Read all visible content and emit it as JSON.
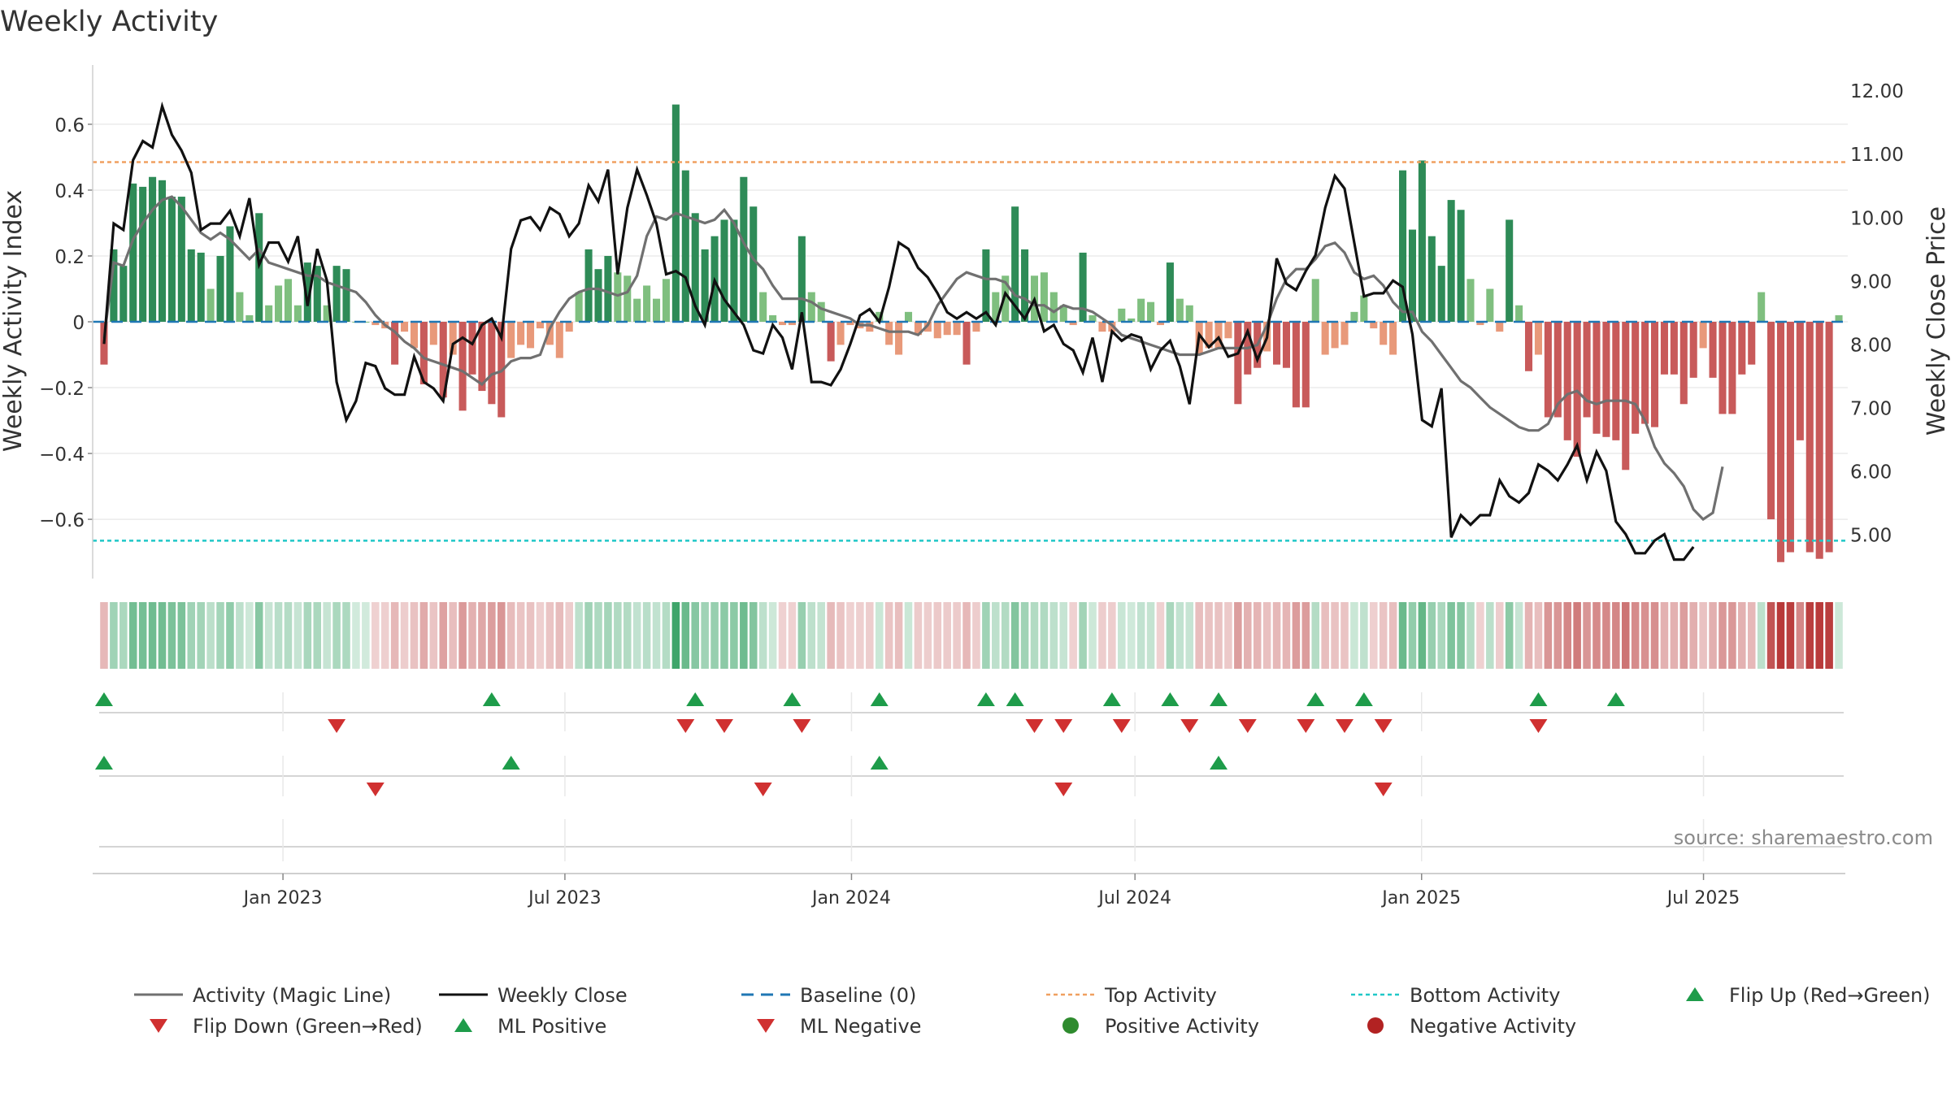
{
  "chart_data": {
    "type": "bar",
    "title": "Weekly Activity",
    "ylabel_left": "Weekly Activity Index",
    "ylabel_right": "Weekly Close Price",
    "ylim_left": [
      -0.78,
      0.78
    ],
    "ylim_right": [
      4.3,
      12.4
    ],
    "yticks_left": [
      0.6,
      0.4,
      0.2,
      0,
      -0.2,
      -0.4,
      -0.6
    ],
    "yticks_left_labels": [
      "0.6",
      "0.4",
      "0.2",
      "0",
      "−0.2",
      "−0.4",
      "−0.6"
    ],
    "yticks_right": [
      12.0,
      11.0,
      10.0,
      9.0,
      8.0,
      7.0,
      6.0,
      5.0
    ],
    "yticks_right_labels": [
      "12.00",
      "11.00",
      "10.00",
      "9.00",
      "8.00",
      "7.00",
      "6.00",
      "5.00"
    ],
    "x_start": "2022-09-05",
    "x_end": "2025-09-29",
    "x_ticks": [
      {
        "date": "2023-01-01",
        "label": "Jan 2023"
      },
      {
        "date": "2023-07-01",
        "label": "Jul 2023"
      },
      {
        "date": "2024-01-01",
        "label": "Jan 2024"
      },
      {
        "date": "2024-07-01",
        "label": "Jul 2024"
      },
      {
        "date": "2025-01-01",
        "label": "Jan 2025"
      },
      {
        "date": "2025-07-01",
        "label": "Jul 2025"
      }
    ],
    "top_activity": 0.485,
    "bottom_activity": -0.665,
    "activity": [
      -0.13,
      0.22,
      0.17,
      0.42,
      0.41,
      0.44,
      0.43,
      0.38,
      0.38,
      0.22,
      0.21,
      0.1,
      0.2,
      0.29,
      0.09,
      0.02,
      0.33,
      0.05,
      0.11,
      0.13,
      0.05,
      0.18,
      0.17,
      0.05,
      0.17,
      0.16,
      0.0,
      0.0,
      -0.01,
      -0.02,
      -0.13,
      -0.03,
      -0.08,
      -0.19,
      -0.07,
      -0.23,
      -0.1,
      -0.27,
      -0.16,
      -0.21,
      -0.25,
      -0.29,
      -0.11,
      -0.07,
      -0.08,
      -0.02,
      -0.07,
      -0.11,
      -0.03,
      0.09,
      0.22,
      0.16,
      0.2,
      0.15,
      0.14,
      0.07,
      0.11,
      0.07,
      0.13,
      0.66,
      0.46,
      0.33,
      0.22,
      0.26,
      0.31,
      0.31,
      0.44,
      0.35,
      0.09,
      0.02,
      -0.01,
      -0.01,
      0.26,
      0.09,
      0.06,
      -0.12,
      -0.07,
      -0.01,
      -0.02,
      -0.03,
      0.03,
      -0.07,
      -0.1,
      0.03,
      -0.04,
      -0.03,
      -0.05,
      -0.04,
      -0.04,
      -0.13,
      -0.03,
      0.22,
      0.09,
      0.14,
      0.35,
      0.22,
      0.14,
      0.15,
      0.09,
      0.05,
      -0.01,
      0.21,
      0.02,
      -0.03,
      -0.03,
      0.04,
      0.01,
      0.07,
      0.06,
      -0.01,
      0.18,
      0.07,
      0.05,
      -0.1,
      -0.08,
      -0.08,
      -0.05,
      -0.25,
      -0.16,
      -0.14,
      -0.09,
      -0.13,
      -0.14,
      -0.26,
      -0.26,
      0.13,
      -0.1,
      -0.08,
      -0.07,
      0.03,
      0.08,
      -0.02,
      -0.07,
      -0.1,
      0.46,
      0.28,
      0.49,
      0.26,
      0.17,
      0.37,
      0.34,
      0.13,
      -0.01,
      0.1,
      -0.03,
      0.31,
      0.05,
      -0.15,
      -0.1,
      -0.29,
      -0.29,
      -0.36,
      -0.41,
      -0.29,
      -0.34,
      -0.35,
      -0.36,
      -0.45,
      -0.34,
      -0.31,
      -0.32,
      -0.16,
      -0.16,
      -0.25,
      -0.17,
      -0.08,
      -0.17,
      -0.28,
      -0.28,
      -0.16,
      -0.13,
      0.09,
      -0.6,
      -0.73,
      -0.7,
      -0.36,
      -0.7,
      -0.72,
      -0.7,
      0.02
    ],
    "series": [
      {
        "name": "Activity (Magic Line)",
        "values": [
          -0.05,
          0.18,
          0.17,
          0.25,
          0.3,
          0.34,
          0.37,
          0.38,
          0.35,
          0.31,
          0.27,
          0.25,
          0.27,
          0.25,
          0.22,
          0.19,
          0.22,
          0.18,
          0.17,
          0.16,
          0.15,
          0.14,
          0.14,
          0.12,
          0.11,
          0.1,
          0.09,
          0.06,
          0.02,
          -0.01,
          -0.03,
          -0.06,
          -0.08,
          -0.11,
          -0.12,
          -0.13,
          -0.14,
          -0.15,
          -0.17,
          -0.19,
          -0.16,
          -0.15,
          -0.12,
          -0.11,
          -0.11,
          -0.1,
          -0.02,
          0.03,
          0.07,
          0.09,
          0.1,
          0.1,
          0.09,
          0.08,
          0.09,
          0.14,
          0.26,
          0.32,
          0.31,
          0.33,
          0.32,
          0.31,
          0.3,
          0.31,
          0.34,
          0.3,
          0.24,
          0.19,
          0.16,
          0.11,
          0.07,
          0.07,
          0.07,
          0.06,
          0.04,
          0.03,
          0.02,
          0.01,
          -0.01,
          -0.01,
          -0.02,
          -0.03,
          -0.03,
          -0.03,
          -0.04,
          -0.01,
          0.05,
          0.09,
          0.13,
          0.15,
          0.14,
          0.13,
          0.13,
          0.12,
          0.08,
          0.07,
          0.05,
          0.05,
          0.03,
          0.05,
          0.04,
          0.04,
          0.03,
          0.01,
          -0.01,
          -0.04,
          -0.05,
          -0.06,
          -0.07,
          -0.08,
          -0.09,
          -0.1,
          -0.1,
          -0.1,
          -0.09,
          -0.08,
          -0.08,
          -0.08,
          -0.08,
          -0.07,
          -0.01,
          0.07,
          0.13,
          0.16,
          0.16,
          0.19,
          0.23,
          0.24,
          0.21,
          0.15,
          0.13,
          0.14,
          0.11,
          0.06,
          0.03,
          0.03,
          -0.03,
          -0.06,
          -0.1,
          -0.14,
          -0.18,
          -0.2,
          -0.23,
          -0.26,
          -0.28,
          -0.3,
          -0.32,
          -0.33,
          -0.33,
          -0.31,
          -0.25,
          -0.22,
          -0.21,
          -0.24,
          -0.25,
          -0.24,
          -0.24,
          -0.24,
          -0.25,
          -0.3,
          -0.38,
          -0.43,
          -0.46,
          -0.5,
          -0.57,
          -0.6,
          -0.58,
          -0.44
        ]
      },
      {
        "name": "Weekly Close",
        "values": [
          8.0,
          9.9,
          9.8,
          10.9,
          11.2,
          11.1,
          11.75,
          11.3,
          11.05,
          10.7,
          9.8,
          9.9,
          9.9,
          10.1,
          9.7,
          10.3,
          9.25,
          9.6,
          9.6,
          9.3,
          9.7,
          8.6,
          9.5,
          9.0,
          7.4,
          6.8,
          7.1,
          7.7,
          7.65,
          7.3,
          7.2,
          7.2,
          7.8,
          7.4,
          7.3,
          7.1,
          8.0,
          8.1,
          8.0,
          8.3,
          8.4,
          8.1,
          9.5,
          9.95,
          10.0,
          9.8,
          10.15,
          10.05,
          9.7,
          9.9,
          10.5,
          10.25,
          10.75,
          9.1,
          10.15,
          10.75,
          10.35,
          9.9,
          9.1,
          9.15,
          9.05,
          8.6,
          8.3,
          9.0,
          8.7,
          8.5,
          8.3,
          7.9,
          7.85,
          8.3,
          8.1,
          7.6,
          8.5,
          7.4,
          7.4,
          7.35,
          7.6,
          8.0,
          8.45,
          8.55,
          8.35,
          8.9,
          9.6,
          9.5,
          9.2,
          9.05,
          8.8,
          8.5,
          8.4,
          8.5,
          8.4,
          8.5,
          8.3,
          8.8,
          8.6,
          8.4,
          8.7,
          8.2,
          8.3,
          8.0,
          7.9,
          7.55,
          8.1,
          7.4,
          8.2,
          8.05,
          8.15,
          8.1,
          7.6,
          7.9,
          8.05,
          7.65,
          7.05,
          8.15,
          7.95,
          8.1,
          7.8,
          7.85,
          8.2,
          7.75,
          8.1,
          9.35,
          8.95,
          8.85,
          9.15,
          9.4,
          10.15,
          10.65,
          10.45,
          9.6,
          8.75,
          8.8,
          8.8,
          9.0,
          8.9,
          8.15,
          6.8,
          6.7,
          7.3,
          4.95,
          5.3,
          5.15,
          5.3,
          5.3,
          5.85,
          5.6,
          5.5,
          5.65,
          6.1,
          6.0,
          5.85,
          6.1,
          6.4,
          5.85,
          6.3,
          6.0,
          5.2,
          5.0,
          4.7,
          4.7,
          4.9,
          5.0,
          4.6,
          4.6,
          4.8
        ]
      }
    ],
    "flip_up_weeks": [
      0,
      40,
      61,
      71,
      80,
      91,
      94,
      104,
      110,
      115,
      125,
      130,
      148,
      156
    ],
    "flip_down_weeks": [
      24,
      60,
      64,
      72,
      96,
      99,
      105,
      112,
      118,
      124,
      128,
      132,
      148
    ],
    "ml_positive_weeks": [
      0,
      42,
      80,
      115
    ],
    "ml_negative_weeks": [
      28,
      68,
      99,
      132
    ],
    "colors": {
      "pos_strong": "#2e8b57",
      "pos_weak": "#7fbf7f",
      "neg_strong": "#c85a5a",
      "neg_weak": "#e8997a",
      "magic_line": "#707070",
      "close_line": "#111111",
      "baseline": "#1f77b4",
      "top_activity": "#f0a060",
      "bottom_activity": "#20c8c8",
      "flip_up": "#1e9c4a",
      "flip_down": "#d03030",
      "positive_activity": "#2e8b2e",
      "negative_activity": "#b22222"
    },
    "legend": [
      {
        "label": "Activity (Magic Line)",
        "icon": "solid-gray-line-icon"
      },
      {
        "label": "Weekly Close",
        "icon": "solid-black-line-icon"
      },
      {
        "label": "Baseline (0)",
        "icon": "dashed-blue-line-icon"
      },
      {
        "label": "Top Activity",
        "icon": "dotted-orange-line-icon"
      },
      {
        "label": "Bottom Activity",
        "icon": "dotted-cyan-line-icon"
      },
      {
        "label": "Flip Up (Red→Green)",
        "icon": "green-up-triangle-icon"
      },
      {
        "label": "Flip Down (Green→Red)",
        "icon": "red-down-triangle-icon"
      },
      {
        "label": "ML Positive",
        "icon": "green-up-triangle-icon"
      },
      {
        "label": "ML Negative",
        "icon": "red-down-triangle-icon"
      },
      {
        "label": "Positive Activity",
        "icon": "green-dot-icon"
      },
      {
        "label": "Negative Activity",
        "icon": "red-dot-icon"
      }
    ],
    "source": "source: sharemaestro.com"
  }
}
